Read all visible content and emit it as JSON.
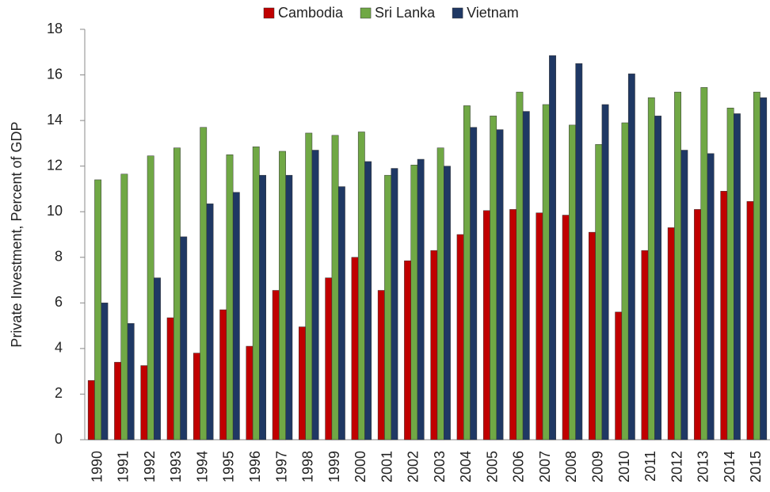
{
  "chart_data": {
    "type": "bar",
    "y_label": "Private Investment, Percent of GDP",
    "categories": [
      "1990",
      "1991",
      "1992",
      "1993",
      "1994",
      "1995",
      "1996",
      "1997",
      "1998",
      "1999",
      "2000",
      "2001",
      "2002",
      "2003",
      "2004",
      "2005",
      "2006",
      "2007",
      "2008",
      "2009",
      "2010",
      "2011",
      "2012",
      "2013",
      "2014",
      "2015"
    ],
    "series": [
      {
        "name": "Cambodia",
        "color": "#c00000",
        "values": [
          2.6,
          3.4,
          3.25,
          5.35,
          3.8,
          5.7,
          4.1,
          6.55,
          4.95,
          7.1,
          8.0,
          6.55,
          7.85,
          8.3,
          9.0,
          10.05,
          10.1,
          9.95,
          9.85,
          9.1,
          5.6,
          8.3,
          9.3,
          10.1,
          10.9,
          10.45
        ]
      },
      {
        "name": "Sri Lanka",
        "color": "#70a845",
        "values": [
          11.4,
          11.65,
          12.45,
          12.8,
          13.7,
          12.5,
          12.85,
          12.65,
          13.45,
          13.35,
          13.5,
          11.6,
          12.05,
          12.8,
          14.65,
          14.2,
          15.25,
          14.7,
          13.8,
          12.95,
          13.9,
          15.0,
          15.25,
          15.45,
          14.55,
          15.25
        ]
      },
      {
        "name": "Vietnam",
        "color": "#1f3864",
        "values": [
          6.0,
          5.1,
          7.1,
          8.9,
          10.35,
          10.85,
          11.6,
          11.6,
          12.7,
          11.1,
          12.2,
          11.9,
          12.3,
          12.0,
          13.7,
          13.6,
          14.4,
          16.85,
          16.5,
          14.7,
          16.05,
          14.2,
          12.7,
          12.55,
          14.3,
          15.0
        ]
      }
    ],
    "ylim": [
      0,
      18
    ],
    "yticks": [
      0,
      2,
      4,
      6,
      8,
      10,
      12,
      14,
      16,
      18
    ],
    "grid": false,
    "legend": "top"
  }
}
